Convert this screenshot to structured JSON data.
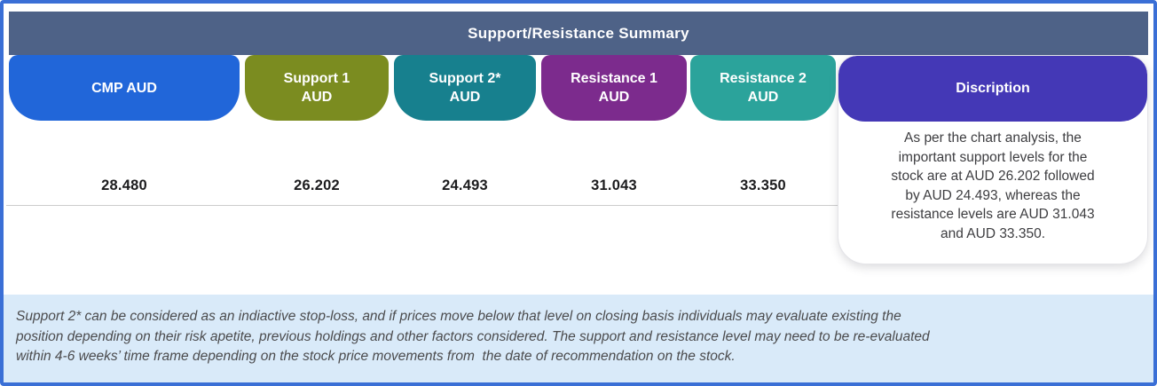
{
  "title": "Support/Resistance Summary",
  "columns": [
    {
      "label": "CMP AUD",
      "value": "28.480",
      "color": "#2166d9"
    },
    {
      "label": "Support 1\nAUD",
      "value": "26.202",
      "color": "#7b8c20"
    },
    {
      "label": "Support 2*\nAUD",
      "value": "24.493",
      "color": "#17808e"
    },
    {
      "label": "Resistance 1\nAUD",
      "value": "31.043",
      "color": "#7c2b8d"
    },
    {
      "label": "Resistance 2\nAUD",
      "value": "33.350",
      "color": "#2ba39b"
    }
  ],
  "description": {
    "header": "Discription",
    "color": "#4438b6",
    "lines": [
      "As per the chart analysis, the",
      "important support levels for the",
      "stock are at AUD 26.202 followed",
      "by AUD 24.493, whereas the",
      "resistance levels are AUD 31.043",
      "and AUD 33.350."
    ]
  },
  "footnote": {
    "lines": [
      "Support 2* can be considered as an indiactive stop-loss, and if prices move below that level on closing basis individuals may evaluate existing the",
      "position depending on their risk apetite, previous holdings and other factors considered. The support and resistance level may need to be re-evaluated",
      "within 4-6 weeks’ time frame depending on the stock price movements from  the date of recommendation on the stock."
    ]
  },
  "colors": {
    "frame_border": "#3a6fd6",
    "title_bar": "#4e6287",
    "footnote_bg": "#d9eaf9"
  },
  "chart_data": {
    "type": "table",
    "title": "Support/Resistance Summary",
    "columns": [
      "CMP AUD",
      "Support 1 AUD",
      "Support 2* AUD",
      "Resistance 1 AUD",
      "Resistance 2 AUD"
    ],
    "values": [
      28.48,
      26.202,
      24.493,
      31.043,
      33.35
    ],
    "currency": "AUD"
  }
}
